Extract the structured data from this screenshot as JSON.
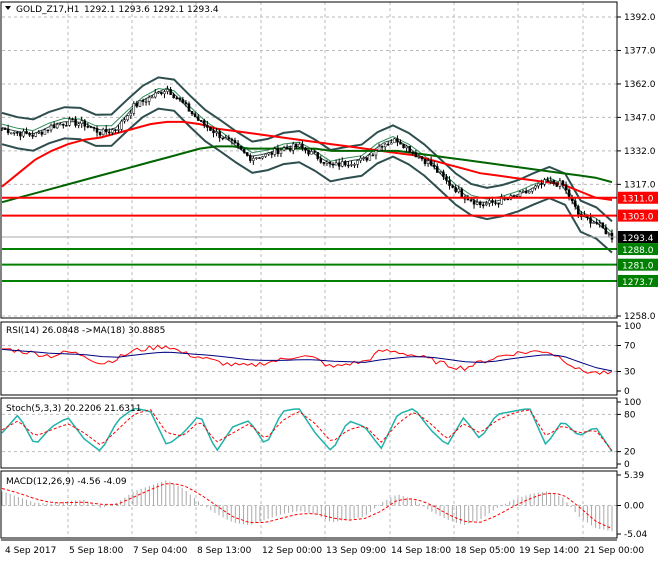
{
  "header": {
    "symbol": "GOLD_Z17,H1",
    "ohlc": "1292.1 1293.6 1292.1 1293.4"
  },
  "colors": {
    "bull": "#000000",
    "bear": "#000000",
    "ma_red": "#ff0000",
    "ma_green": "#006400",
    "bands": "#2f4f4f",
    "level_red": "#ff0000",
    "level_green": "#008000",
    "rsi": "#ff0000",
    "rsi_ma": "#000080",
    "stoch_main": "#20b2aa",
    "stoch_signal": "#ff0000",
    "macd_hist": "#a9a9a9",
    "macd_signal": "#ff0000"
  },
  "chart_data": [
    {
      "type": "line",
      "title": "GOLD_Z17,H1",
      "ylim": [
        1258,
        1392
      ],
      "y_ticks": [
        "1392.0",
        "1377.0",
        "1362.0",
        "1347.0",
        "1332.0",
        "1317.0",
        "1258.0"
      ],
      "x_ticks": [
        "4 Sep 2017",
        "5 Sep 18:00",
        "7 Sep 04:00",
        "8 Sep 13:00",
        "12 Sep 00:00",
        "13 Sep 09:00",
        "14 Sep 18:00",
        "18 Sep 05:00",
        "19 Sep 14:00",
        "21 Sep 00:00"
      ],
      "series": [
        {
          "name": "price",
          "values": [
            1342,
            1340,
            1339,
            1343,
            1345,
            1344,
            1340,
            1342,
            1352,
            1356,
            1360,
            1353,
            1345,
            1340,
            1335,
            1329,
            1330,
            1333,
            1334,
            1330,
            1325,
            1327,
            1328,
            1335,
            1337,
            1331,
            1326,
            1318,
            1312,
            1308,
            1309,
            1311,
            1314,
            1318,
            1317,
            1303,
            1300,
            1293.4
          ]
        },
        {
          "name": "ma_red",
          "values": [
            1316,
            1322,
            1328,
            1332,
            1335,
            1337,
            1338,
            1340,
            1342,
            1344,
            1345,
            1345,
            1344,
            1342,
            1341,
            1340,
            1339,
            1338,
            1337,
            1336,
            1335,
            1334,
            1333,
            1332,
            1331,
            1330,
            1328,
            1326,
            1324,
            1322,
            1321,
            1320,
            1319,
            1318,
            1317,
            1314,
            1311,
            1310
          ]
        },
        {
          "name": "ma_green",
          "values": [
            1309,
            1311,
            1313,
            1315,
            1317,
            1319,
            1321,
            1323,
            1325,
            1327,
            1329,
            1331,
            1333,
            1334,
            1334,
            1333,
            1333,
            1333,
            1333,
            1333,
            1332,
            1332,
            1332,
            1332,
            1332,
            1331,
            1330,
            1329,
            1328,
            1327,
            1326,
            1325,
            1324,
            1323,
            1322,
            1321,
            1320,
            1318
          ]
        }
      ],
      "levels": [
        {
          "label": "1311.0",
          "value": 1311.0,
          "color": "red"
        },
        {
          "label": "1303.0",
          "value": 1303.0,
          "color": "red"
        },
        {
          "label": "1293.4",
          "value": 1293.4,
          "color": "current"
        },
        {
          "label": "1288.0",
          "value": 1288.0,
          "color": "green"
        },
        {
          "label": "1281.0",
          "value": 1281.0,
          "color": "green"
        },
        {
          "label": "1273.7",
          "value": 1273.7,
          "color": "green"
        }
      ]
    },
    {
      "type": "line",
      "title": "RSI(14) 26.0848  ->MA(18) 30.8885",
      "ylim": [
        0,
        100
      ],
      "y_ticks": [
        "100",
        "70",
        "30",
        "0"
      ],
      "series": [
        {
          "name": "rsi",
          "values": [
            65,
            62,
            58,
            54,
            60,
            55,
            42,
            50,
            62,
            66,
            70,
            58,
            52,
            45,
            40,
            38,
            44,
            48,
            55,
            50,
            36,
            42,
            45,
            62,
            60,
            55,
            48,
            40,
            35,
            44,
            52,
            58,
            60,
            62,
            50,
            32,
            28,
            26.1
          ]
        },
        {
          "name": "rsi_ma",
          "values": [
            64,
            62,
            60,
            58,
            57,
            56,
            53,
            52,
            55,
            58,
            60,
            58,
            56,
            54,
            51,
            48,
            47,
            47,
            48,
            48,
            46,
            45,
            44,
            48,
            51,
            53,
            52,
            49,
            45,
            44,
            46,
            50,
            53,
            56,
            54,
            45,
            36,
            30.9
          ]
        }
      ]
    },
    {
      "type": "line",
      "title": "Stoch(5,3,3) 20.2206 21.6311",
      "ylim": [
        0,
        100
      ],
      "y_ticks": [
        "100",
        "80",
        "20",
        "0"
      ],
      "series": [
        {
          "name": "main",
          "values": [
            50,
            80,
            30,
            60,
            75,
            40,
            20,
            70,
            90,
            85,
            30,
            50,
            80,
            20,
            60,
            70,
            30,
            85,
            90,
            50,
            20,
            70,
            60,
            25,
            80,
            90,
            55,
            30,
            75,
            40,
            80,
            85,
            90,
            30,
            70,
            45,
            60,
            20.2
          ]
        },
        {
          "name": "signal",
          "values": [
            55,
            70,
            45,
            55,
            65,
            50,
            30,
            55,
            80,
            88,
            50,
            45,
            70,
            35,
            50,
            65,
            40,
            70,
            85,
            65,
            35,
            55,
            62,
            35,
            65,
            85,
            65,
            40,
            65,
            50,
            70,
            82,
            88,
            45,
            62,
            50,
            55,
            21.6
          ]
        }
      ]
    },
    {
      "type": "bar",
      "title": "MACD(12,26,9) -4.56 -4.09",
      "ylim": [
        -5.04,
        5.39
      ],
      "y_ticks": [
        "5.39",
        "0.00",
        "-5.04"
      ],
      "series": [
        {
          "name": "macd",
          "values": [
            2.5,
            1.5,
            0.5,
            0.3,
            0.8,
            1.0,
            -0.5,
            0.5,
            2.5,
            3.5,
            4.5,
            3.0,
            0.5,
            -1.5,
            -3.0,
            -3.5,
            -2.5,
            -1.5,
            -1.0,
            -1.5,
            -3.0,
            -2.5,
            -2.0,
            0.5,
            2.0,
            1.0,
            -1.0,
            -2.5,
            -3.5,
            -2.5,
            -0.5,
            1.0,
            2.0,
            2.5,
            1.5,
            -2.0,
            -4.0,
            -4.56
          ]
        },
        {
          "name": "signal",
          "values": [
            3.0,
            2.2,
            1.2,
            0.5,
            0.5,
            0.6,
            0.2,
            0.2,
            1.5,
            2.8,
            4.0,
            3.6,
            2.0,
            0.0,
            -2.0,
            -3.0,
            -3.0,
            -2.2,
            -1.5,
            -1.4,
            -2.2,
            -2.6,
            -2.3,
            -1.0,
            1.0,
            1.2,
            0.2,
            -1.5,
            -2.8,
            -3.0,
            -1.8,
            -0.2,
            1.2,
            2.2,
            2.0,
            -0.2,
            -2.8,
            -4.09
          ]
        }
      ]
    }
  ]
}
